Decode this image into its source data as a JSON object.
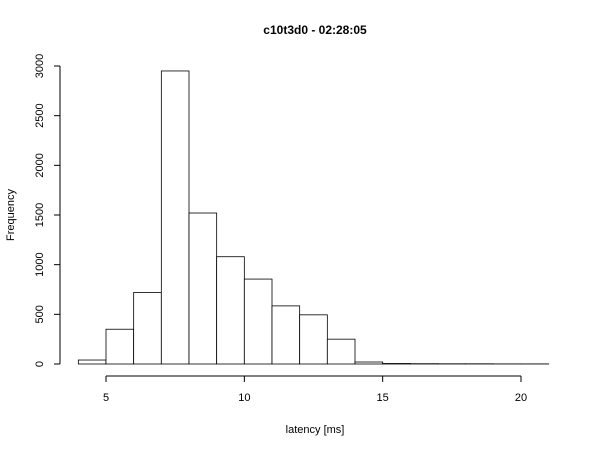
{
  "chart_data": {
    "type": "histogram",
    "title": "c10t3d0 - 02:28:05",
    "x_label": "latency [ms]",
    "y_label": "Frequency",
    "bins": [
      4,
      5,
      6,
      7,
      8,
      9,
      10,
      11,
      12,
      13,
      14,
      15,
      16,
      17,
      18,
      19,
      20,
      21
    ],
    "values": [
      40,
      350,
      720,
      2950,
      1520,
      1080,
      855,
      585,
      495,
      250,
      20,
      5,
      3,
      2,
      2,
      1,
      1
    ],
    "color": "#ffffff",
    "xlim": [
      5,
      20
    ],
    "ylim": [
      0,
      3000
    ],
    "xticks": [
      5,
      10,
      15,
      20
    ],
    "yticks": [
      0,
      500,
      1000,
      1500,
      2000,
      2500,
      3000
    ]
  }
}
